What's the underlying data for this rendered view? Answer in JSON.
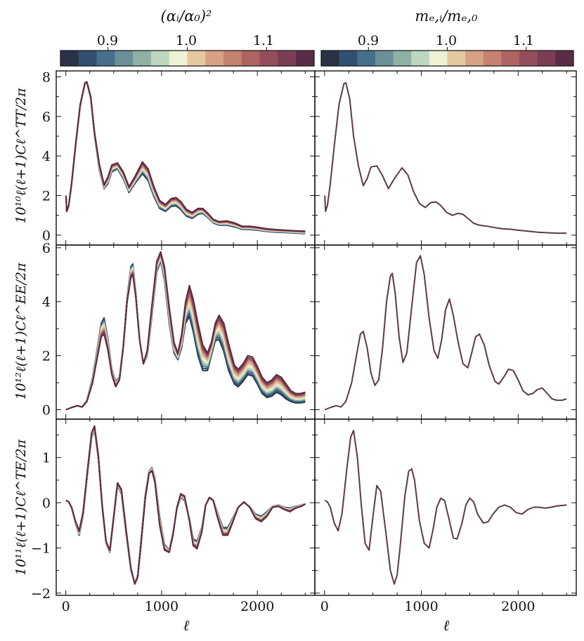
{
  "colorbars": [
    {
      "label": "(αᵢ/α₀)²",
      "ticks": [
        {
          "label": "0.9",
          "value": 0.9
        },
        {
          "label": "1.0",
          "value": 1.0
        },
        {
          "label": "1.1",
          "value": 1.1
        }
      ]
    },
    {
      "label": "mₑ,ᵢ/mₑ,₀",
      "ticks": [
        {
          "label": "0.9",
          "value": 0.9
        },
        {
          "label": "1.0",
          "value": 1.0
        },
        {
          "label": "1.1",
          "value": 1.1
        }
      ]
    }
  ],
  "colorbar_range": [
    0.84,
    1.16
  ],
  "palette": [
    "#2a3346",
    "#325172",
    "#466f8c",
    "#6a9096",
    "#8fb0a5",
    "#bcd6bf",
    "#eef1d4",
    "#e5c8a0",
    "#d6a283",
    "#c4826f",
    "#ae6463",
    "#944e5b",
    "#7b3e55",
    "#5b2c45"
  ],
  "line_color": "#5b3a45",
  "chart_data": [
    {
      "type": "line",
      "panel": "TT",
      "column": "alpha",
      "parameter": "(αᵢ/α₀)²",
      "ylabel": "10¹⁰ℓ(ℓ+1)Cℓ^TT/2π",
      "xlabel": "",
      "xlim": [
        -100,
        2600
      ],
      "ylim": [
        -0.5,
        8.3
      ],
      "yticks": [
        {
          "label": "0",
          "value": 0
        },
        {
          "label": "2",
          "value": 2
        },
        {
          "label": "4",
          "value": 4
        },
        {
          "label": "6",
          "value": 6
        },
        {
          "label": "8",
          "value": 8
        }
      ],
      "xticks": [
        0,
        1000,
        2000
      ],
      "x": [
        2,
        10,
        30,
        60,
        100,
        150,
        200,
        220,
        260,
        300,
        350,
        400,
        440,
        480,
        540,
        600,
        660,
        720,
        800,
        860,
        920,
        980,
        1040,
        1100,
        1150,
        1200,
        1260,
        1320,
        1380,
        1430,
        1480,
        1540,
        1600,
        1680,
        1760,
        1840,
        1920,
        2000,
        2100,
        2200,
        2300,
        2400,
        2500
      ],
      "series": [
        {
          "name": "min",
          "values": [
            2.0,
            1.2,
            1.45,
            2.5,
            4.4,
            6.5,
            7.65,
            7.7,
            6.9,
            5.0,
            3.3,
            2.35,
            2.6,
            3.2,
            3.35,
            2.85,
            2.15,
            2.6,
            3.1,
            2.75,
            1.95,
            1.35,
            1.2,
            1.45,
            1.48,
            1.3,
            0.95,
            0.85,
            1.05,
            1.1,
            0.9,
            0.62,
            0.5,
            0.5,
            0.42,
            0.3,
            0.28,
            0.25,
            0.18,
            0.15,
            0.13,
            0.1,
            0.08
          ]
        },
        {
          "name": "max",
          "values": [
            2.0,
            1.2,
            1.5,
            2.6,
            4.5,
            6.6,
            7.7,
            7.75,
            7.0,
            5.2,
            3.6,
            2.55,
            2.95,
            3.55,
            3.65,
            3.2,
            2.45,
            2.95,
            3.7,
            3.35,
            2.45,
            1.75,
            1.55,
            1.85,
            1.9,
            1.7,
            1.3,
            1.15,
            1.35,
            1.35,
            1.12,
            0.8,
            0.68,
            0.72,
            0.62,
            0.45,
            0.45,
            0.4,
            0.32,
            0.28,
            0.25,
            0.22,
            0.2
          ]
        }
      ]
    },
    {
      "type": "line",
      "panel": "TT",
      "column": "me",
      "parameter": "mₑ,ᵢ/mₑ,₀",
      "ylabel": "",
      "xlabel": "",
      "xlim": [
        -100,
        2600
      ],
      "ylim": [
        -0.5,
        8.3
      ],
      "xticks": [
        0,
        1000,
        2000
      ],
      "x": [
        2,
        10,
        30,
        60,
        100,
        150,
        200,
        220,
        260,
        300,
        350,
        400,
        440,
        480,
        540,
        600,
        660,
        720,
        800,
        860,
        920,
        980,
        1040,
        1100,
        1150,
        1200,
        1260,
        1320,
        1380,
        1430,
        1480,
        1540,
        1600,
        1680,
        1760,
        1840,
        1920,
        2000,
        2100,
        2200,
        2300,
        2400,
        2500
      ],
      "series": [
        {
          "name": "all",
          "values": [
            2.0,
            1.2,
            1.5,
            2.6,
            4.5,
            6.6,
            7.65,
            7.7,
            6.9,
            5.0,
            3.5,
            2.5,
            2.85,
            3.45,
            3.5,
            3.0,
            2.35,
            2.85,
            3.4,
            3.05,
            2.2,
            1.6,
            1.4,
            1.65,
            1.68,
            1.5,
            1.15,
            1.0,
            1.1,
            1.05,
            0.85,
            0.6,
            0.5,
            0.45,
            0.38,
            0.32,
            0.3,
            0.25,
            0.2,
            0.15,
            0.12,
            0.1,
            0.1
          ]
        }
      ]
    },
    {
      "type": "line",
      "panel": "EE",
      "column": "alpha",
      "ylabel": "10¹²ℓ(ℓ+1)Cℓ^EE/2π",
      "xlabel": "",
      "xlim": [
        -100,
        2600
      ],
      "ylim": [
        -0.35,
        6.1
      ],
      "yticks": [
        {
          "label": "0",
          "value": 0
        },
        {
          "label": "2",
          "value": 2
        },
        {
          "label": "4",
          "value": 4
        },
        {
          "label": "6",
          "value": 6
        }
      ],
      "xticks": [
        0,
        1000,
        2000
      ],
      "x": [
        2,
        60,
        120,
        170,
        220,
        280,
        330,
        370,
        400,
        440,
        480,
        520,
        560,
        600,
        640,
        680,
        700,
        730,
        770,
        810,
        850,
        900,
        950,
        990,
        1030,
        1080,
        1130,
        1170,
        1210,
        1250,
        1290,
        1330,
        1380,
        1430,
        1480,
        1520,
        1560,
        1600,
        1650,
        1700,
        1760,
        1800,
        1850,
        1900,
        1950,
        2000,
        2050,
        2100,
        2150,
        2200,
        2250,
        2300,
        2350,
        2400,
        2450,
        2500
      ],
      "series": [
        {
          "name": "min",
          "values": [
            0,
            0.08,
            0.15,
            0.1,
            0.35,
            1.2,
            2.3,
            3.2,
            3.4,
            2.6,
            1.5,
            1.05,
            1.2,
            2.4,
            4.2,
            5.3,
            5.4,
            4.4,
            2.6,
            1.7,
            2.0,
            3.5,
            5.1,
            5.5,
            4.8,
            3.2,
            2.1,
            1.85,
            2.3,
            3.2,
            3.45,
            2.9,
            2.0,
            1.45,
            1.45,
            2.0,
            2.55,
            2.6,
            2.15,
            1.45,
            0.95,
            0.85,
            1.05,
            1.3,
            1.25,
            0.95,
            0.6,
            0.45,
            0.5,
            0.65,
            0.55,
            0.4,
            0.3,
            0.25,
            0.25,
            0.28
          ]
        },
        {
          "name": "max",
          "values": [
            0,
            0.08,
            0.15,
            0.1,
            0.3,
            1.0,
            1.95,
            2.7,
            2.8,
            2.2,
            1.3,
            0.85,
            1.1,
            2.3,
            4.0,
            4.9,
            5.0,
            4.2,
            2.6,
            1.7,
            2.2,
            3.9,
            5.5,
            5.85,
            5.3,
            3.8,
            2.5,
            2.1,
            2.8,
            4.0,
            4.6,
            4.1,
            3.2,
            2.4,
            2.1,
            2.5,
            3.2,
            3.5,
            3.2,
            2.45,
            1.65,
            1.5,
            1.7,
            2.0,
            1.95,
            1.6,
            1.2,
            1.0,
            1.1,
            1.3,
            1.2,
            0.95,
            0.7,
            0.6,
            0.6,
            0.65
          ]
        }
      ]
    },
    {
      "type": "line",
      "panel": "EE",
      "column": "me",
      "ylabel": "",
      "xlabel": "",
      "xlim": [
        -100,
        2600
      ],
      "ylim": [
        -0.35,
        6.1
      ],
      "xticks": [
        0,
        1000,
        2000
      ],
      "x": [
        2,
        60,
        120,
        170,
        220,
        280,
        330,
        370,
        400,
        440,
        480,
        520,
        560,
        600,
        640,
        680,
        700,
        730,
        770,
        810,
        850,
        900,
        950,
        990,
        1030,
        1080,
        1130,
        1170,
        1210,
        1250,
        1290,
        1330,
        1380,
        1430,
        1480,
        1520,
        1560,
        1600,
        1650,
        1700,
        1760,
        1800,
        1850,
        1900,
        1950,
        2000,
        2050,
        2100,
        2150,
        2200,
        2250,
        2300,
        2350,
        2400,
        2450,
        2500
      ],
      "series": [
        {
          "name": "all",
          "values": [
            0,
            0.08,
            0.15,
            0.1,
            0.3,
            1.0,
            2.0,
            2.8,
            2.9,
            2.3,
            1.35,
            0.9,
            1.1,
            2.3,
            4.0,
            4.95,
            5.05,
            4.3,
            2.7,
            1.75,
            2.1,
            3.8,
            5.45,
            5.7,
            5.0,
            3.4,
            2.2,
            1.9,
            2.6,
            3.7,
            4.1,
            3.5,
            2.5,
            1.7,
            1.55,
            2.1,
            2.7,
            2.8,
            2.4,
            1.65,
            1.05,
            0.95,
            1.2,
            1.5,
            1.45,
            1.1,
            0.7,
            0.55,
            0.6,
            0.75,
            0.8,
            0.6,
            0.4,
            0.35,
            0.35,
            0.4
          ]
        }
      ]
    },
    {
      "type": "line",
      "panel": "TE",
      "column": "alpha",
      "ylabel": "10¹¹ℓ(ℓ+1)Cℓ^TE/2π",
      "xlabel": "ℓ",
      "xlim": [
        -100,
        2600
      ],
      "ylim": [
        -2.05,
        1.85
      ],
      "yticks": [
        {
          "label": "−2",
          "value": -2
        },
        {
          "label": "−1",
          "value": -1
        },
        {
          "label": "0",
          "value": 0
        },
        {
          "label": "1",
          "value": 1
        }
      ],
      "xticks": [
        {
          "label": "0",
          "value": 0
        },
        {
          "label": "1000",
          "value": 1000
        },
        {
          "label": "2000",
          "value": 2000
        }
      ],
      "x": [
        2,
        30,
        60,
        100,
        140,
        180,
        230,
        270,
        300,
        340,
        380,
        420,
        460,
        500,
        540,
        580,
        630,
        680,
        720,
        750,
        780,
        830,
        870,
        900,
        930,
        980,
        1030,
        1080,
        1120,
        1160,
        1200,
        1240,
        1290,
        1330,
        1370,
        1420,
        1460,
        1500,
        1540,
        1580,
        1640,
        1690,
        1740,
        1800,
        1860,
        1920,
        1980,
        2040,
        2100,
        2160,
        2220,
        2280,
        2340,
        2400,
        2460,
        2500
      ],
      "series": [
        {
          "name": "min",
          "values": [
            0.05,
            0.02,
            -0.1,
            -0.45,
            -0.72,
            -0.3,
            0.7,
            1.45,
            1.6,
            0.95,
            -0.1,
            -0.9,
            -1.1,
            -0.35,
            0.38,
            0.2,
            -0.7,
            -1.5,
            -1.78,
            -1.6,
            -0.95,
            0.2,
            0.7,
            0.78,
            0.55,
            -0.3,
            -0.92,
            -1.05,
            -0.65,
            -0.15,
            0.12,
            0.05,
            -0.35,
            -0.8,
            -0.85,
            -0.55,
            -0.05,
            0.1,
            0.05,
            -0.2,
            -0.55,
            -0.55,
            -0.35,
            -0.1,
            0.0,
            -0.08,
            -0.25,
            -0.3,
            -0.2,
            -0.08,
            -0.05,
            -0.1,
            -0.12,
            -0.08,
            -0.05,
            -0.02
          ]
        },
        {
          "name": "max",
          "values": [
            0.05,
            0.02,
            -0.1,
            -0.4,
            -0.62,
            -0.2,
            0.8,
            1.55,
            1.7,
            1.05,
            -0.05,
            -0.85,
            -1.05,
            -0.3,
            0.44,
            0.3,
            -0.6,
            -1.45,
            -1.8,
            -1.65,
            -1.05,
            0.1,
            0.65,
            0.7,
            0.45,
            -0.5,
            -1.05,
            -1.1,
            -0.7,
            -0.1,
            0.2,
            0.15,
            -0.4,
            -0.95,
            -1.02,
            -0.65,
            -0.05,
            0.12,
            0.05,
            -0.3,
            -0.72,
            -0.72,
            -0.45,
            -0.1,
            0.02,
            -0.1,
            -0.35,
            -0.42,
            -0.3,
            -0.1,
            -0.08,
            -0.15,
            -0.2,
            -0.12,
            -0.08,
            -0.03
          ]
        }
      ]
    },
    {
      "type": "line",
      "panel": "TE",
      "column": "me",
      "ylabel": "",
      "xlabel": "ℓ",
      "xlim": [
        -100,
        2600
      ],
      "ylim": [
        -2.05,
        1.85
      ],
      "xticks": [
        {
          "label": "0",
          "value": 0
        },
        {
          "label": "1000",
          "value": 1000
        },
        {
          "label": "2000",
          "value": 2000
        }
      ],
      "x": [
        2,
        30,
        60,
        100,
        140,
        180,
        230,
        270,
        300,
        340,
        380,
        420,
        460,
        500,
        540,
        580,
        630,
        680,
        720,
        750,
        780,
        830,
        870,
        900,
        930,
        980,
        1030,
        1080,
        1120,
        1160,
        1200,
        1240,
        1290,
        1330,
        1370,
        1420,
        1460,
        1500,
        1540,
        1580,
        1640,
        1690,
        1740,
        1800,
        1860,
        1920,
        1980,
        2040,
        2100,
        2160,
        2220,
        2280,
        2340,
        2400,
        2460,
        2500
      ],
      "series": [
        {
          "name": "all",
          "values": [
            0.05,
            0.02,
            -0.1,
            -0.45,
            -0.62,
            -0.25,
            0.75,
            1.45,
            1.6,
            1.0,
            -0.05,
            -0.9,
            -1.05,
            -0.3,
            0.38,
            0.25,
            -0.6,
            -1.5,
            -1.8,
            -1.6,
            -1.0,
            0.15,
            0.7,
            0.75,
            0.5,
            -0.4,
            -0.9,
            -1.0,
            -0.6,
            -0.1,
            0.1,
            0.05,
            -0.4,
            -0.78,
            -0.8,
            -0.45,
            -0.05,
            0.1,
            0.02,
            -0.25,
            -0.45,
            -0.42,
            -0.25,
            -0.1,
            -0.05,
            -0.1,
            -0.22,
            -0.25,
            -0.15,
            -0.1,
            -0.1,
            -0.12,
            -0.1,
            -0.07,
            -0.06,
            -0.05
          ]
        }
      ]
    }
  ]
}
